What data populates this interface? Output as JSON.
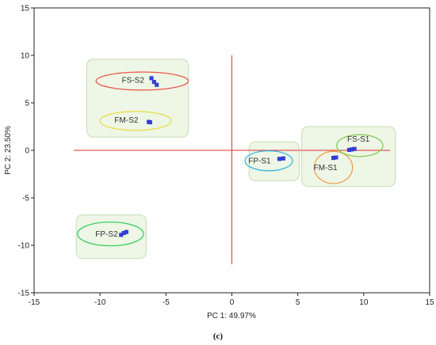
{
  "chart_data": {
    "type": "scatter",
    "title": "",
    "xlabel": "PC 1: 49.97%",
    "ylabel": "PC 2: 23.50%",
    "xlim": [
      -15,
      15
    ],
    "ylim": [
      -15,
      15
    ],
    "xticks": [
      -15,
      -10,
      -5,
      0,
      5,
      10,
      15
    ],
    "yticks": [
      -15,
      -10,
      -5,
      0,
      5,
      10,
      15
    ],
    "grid": false,
    "caption": "(c)",
    "colors": {
      "points": "#3340e0",
      "reference_lines": "#e03030",
      "cluster_box_fill": "#eef6e6",
      "cluster_box_stroke": "#c6dcb6"
    },
    "groups": [
      {
        "name": "FS-S2",
        "color": "#e8584a",
        "ellipse": {
          "cx": -6.8,
          "cy": 7.3,
          "rx": 3.5,
          "ry": 0.95
        },
        "label_at": [
          -7.5,
          7.4
        ],
        "points": [
          [
            -6.1,
            7.6
          ],
          [
            -5.9,
            7.2
          ],
          [
            -5.7,
            6.9
          ]
        ]
      },
      {
        "name": "FM-S2",
        "color": "#e8e04a",
        "ellipse": {
          "cx": -7.3,
          "cy": 3.1,
          "rx": 2.7,
          "ry": 1.0
        },
        "label_at": [
          -8.0,
          3.2
        ],
        "points": [
          [
            -6.3,
            3.0
          ],
          [
            -6.2,
            2.95
          ]
        ]
      },
      {
        "name": "FP-S1",
        "color": "#38b8e0",
        "ellipse": {
          "cx": 2.8,
          "cy": -1.1,
          "rx": 1.8,
          "ry": 1.05
        },
        "label_at": [
          2.1,
          -1.1
        ],
        "points": [
          [
            3.6,
            -0.9
          ],
          [
            3.9,
            -0.85
          ]
        ]
      },
      {
        "name": "FM-S1",
        "color": "#f0a050",
        "ellipse": {
          "cx": 7.7,
          "cy": -1.8,
          "rx": 1.45,
          "ry": 1.7
        },
        "label_at": [
          7.1,
          -1.8
        ],
        "points": [
          [
            7.7,
            -0.8
          ],
          [
            7.9,
            -0.75
          ]
        ]
      },
      {
        "name": "FS-S1",
        "color": "#8ccc60",
        "ellipse": {
          "cx": 9.7,
          "cy": 0.5,
          "rx": 1.75,
          "ry": 1.15
        },
        "label_at": [
          9.6,
          1.2
        ],
        "points": [
          [
            8.9,
            0.05
          ],
          [
            9.1,
            0.1
          ],
          [
            9.3,
            0.15
          ]
        ]
      },
      {
        "name": "FP-S2",
        "color": "#38d060",
        "ellipse": {
          "cx": -9.2,
          "cy": -8.8,
          "rx": 2.5,
          "ry": 1.25
        },
        "label_at": [
          -9.5,
          -8.8
        ],
        "points": [
          [
            -8.4,
            -8.9
          ],
          [
            -8.2,
            -8.7
          ],
          [
            -8.0,
            -8.6
          ]
        ]
      }
    ],
    "cluster_boxes": [
      {
        "x0": -11.0,
        "x1": -3.3,
        "y0": 1.4,
        "y1": 9.6
      },
      {
        "x0": -11.8,
        "x1": -6.5,
        "y0": -11.4,
        "y1": -6.8
      },
      {
        "x0": 1.3,
        "x1": 5.1,
        "y0": -3.2,
        "y1": 0.9
      },
      {
        "x0": 5.3,
        "x1": 12.4,
        "y0": -3.8,
        "y1": 2.5
      }
    ],
    "reference_lines": {
      "vertical": {
        "x": 0,
        "y0": -12,
        "y1": 10
      },
      "horizontal": {
        "y": 0,
        "x0": -12,
        "x1": 12
      }
    }
  }
}
